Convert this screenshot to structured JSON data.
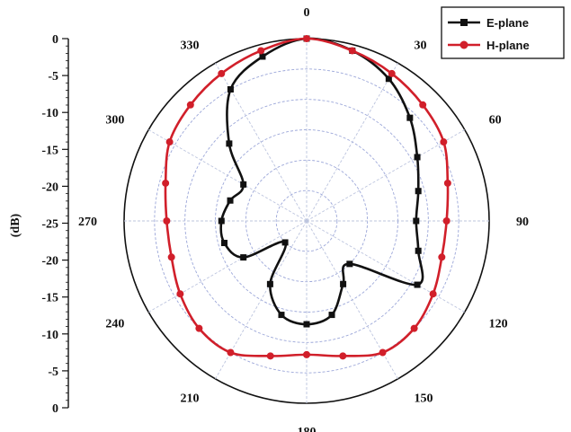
{
  "chart_data": {
    "type": "line",
    "subtype": "polar",
    "title": "",
    "ylabel": "(dB)",
    "rlim": [
      -30,
      0
    ],
    "radial_ticks": [
      "0",
      "-5",
      "-10",
      "-15",
      "-20",
      "-25",
      "-20",
      "-15",
      "-10",
      "-5",
      "0"
    ],
    "angle_ticks": [
      "0",
      "30",
      "60",
      "90",
      "120",
      "150",
      "180",
      "210",
      "240",
      "270",
      "300",
      "330"
    ],
    "grid": true,
    "legend_position": "top-right",
    "series": [
      {
        "name": "E-plane",
        "color": "#111111",
        "marker": "square",
        "points": [
          {
            "theta": 0,
            "r": 0
          },
          {
            "theta": 15,
            "r": -1
          },
          {
            "theta": 30,
            "r": -3
          },
          {
            "theta": 45,
            "r": -6
          },
          {
            "theta": 60,
            "r": -9
          },
          {
            "theta": 75,
            "r": -11
          },
          {
            "theta": 90,
            "r": -12
          },
          {
            "theta": 105,
            "r": -11
          },
          {
            "theta": 120,
            "r": -9
          },
          {
            "theta": 135,
            "r": -20
          },
          {
            "theta": 150,
            "r": -18
          },
          {
            "theta": 165,
            "r": -14
          },
          {
            "theta": 180,
            "r": -13
          },
          {
            "theta": 195,
            "r": -14
          },
          {
            "theta": 210,
            "r": -18
          },
          {
            "theta": 225,
            "r": -25
          },
          {
            "theta": 240,
            "r": -18
          },
          {
            "theta": 255,
            "r": -16
          },
          {
            "theta": 270,
            "r": -16
          },
          {
            "theta": 285,
            "r": -17
          },
          {
            "theta": 300,
            "r": -18
          },
          {
            "theta": 315,
            "r": -12
          },
          {
            "theta": 330,
            "r": -5
          },
          {
            "theta": 345,
            "r": -2
          }
        ]
      },
      {
        "name": "H-plane",
        "color": "#d11f2a",
        "marker": "circle",
        "points": [
          {
            "theta": 0,
            "r": 0
          },
          {
            "theta": 15,
            "r": -1
          },
          {
            "theta": 30,
            "r": -2
          },
          {
            "theta": 45,
            "r": -3
          },
          {
            "theta": 60,
            "r": -4
          },
          {
            "theta": 75,
            "r": -6
          },
          {
            "theta": 90,
            "r": -7
          },
          {
            "theta": 105,
            "r": -7
          },
          {
            "theta": 120,
            "r": -6
          },
          {
            "theta": 135,
            "r": -5
          },
          {
            "theta": 150,
            "r": -5
          },
          {
            "theta": 165,
            "r": -7
          },
          {
            "theta": 180,
            "r": -8
          },
          {
            "theta": 195,
            "r": -7
          },
          {
            "theta": 210,
            "r": -5
          },
          {
            "theta": 225,
            "r": -5
          },
          {
            "theta": 240,
            "r": -6
          },
          {
            "theta": 255,
            "r": -7
          },
          {
            "theta": 270,
            "r": -7
          },
          {
            "theta": 285,
            "r": -6
          },
          {
            "theta": 300,
            "r": -4
          },
          {
            "theta": 315,
            "r": -3
          },
          {
            "theta": 330,
            "r": -2
          },
          {
            "theta": 345,
            "r": -1
          }
        ]
      }
    ]
  },
  "colors": {
    "ring_grid": "#9ca7d9",
    "spoke_grid": "#bcc4de",
    "axis": "#111111",
    "background": "#ffffff"
  }
}
